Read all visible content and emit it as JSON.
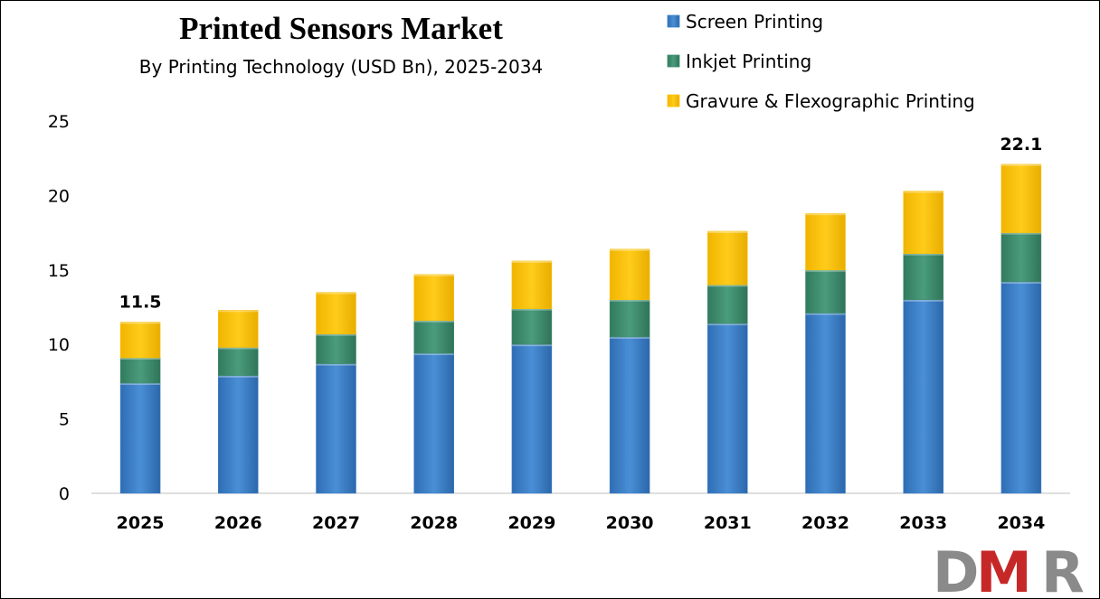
{
  "chart_data": {
    "type": "bar",
    "stacked": true,
    "title": "Printed Sensors Market",
    "subtitle": "By Printing Technology (USD Bn), 2025-2034",
    "categories": [
      "2025",
      "2026",
      "2027",
      "2028",
      "2029",
      "2030",
      "2031",
      "2032",
      "2033",
      "2034"
    ],
    "series": [
      {
        "name": "Screen Printing",
        "color": "#3A7FC8",
        "values": [
          7.4,
          7.9,
          8.7,
          9.4,
          10.0,
          10.5,
          11.4,
          12.1,
          13.0,
          14.2
        ]
      },
      {
        "name": "Inkjet Printing",
        "color": "#3E8C6E",
        "values": [
          1.7,
          1.9,
          2.0,
          2.2,
          2.4,
          2.5,
          2.6,
          2.9,
          3.1,
          3.3
        ]
      },
      {
        "name": "Gravure & Flexographic Printing",
        "color": "#FFC000",
        "values": [
          2.4,
          2.5,
          2.8,
          3.1,
          3.2,
          3.4,
          3.6,
          3.8,
          4.2,
          4.6
        ]
      }
    ],
    "ylim": [
      0,
      25
    ],
    "yticks": [
      "0",
      "5",
      "10",
      "15",
      "20",
      "25"
    ],
    "xlabel": "",
    "ylabel": "",
    "grid": false,
    "legend_position": "top-right",
    "annotations": [
      {
        "category": "2025",
        "text": "11.5"
      },
      {
        "category": "2034",
        "text": "22.1"
      }
    ]
  },
  "logo": {
    "text": "DMR",
    "colors": [
      "#8a8a8a",
      "#c62828",
      "#8a8a8a"
    ]
  }
}
